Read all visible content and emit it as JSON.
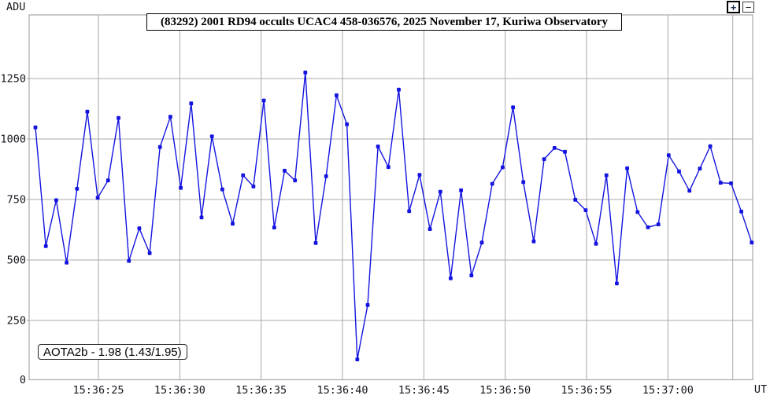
{
  "axes": {
    "y_unit": "ADU",
    "x_unit": "UT"
  },
  "toolbar": {
    "zoom_in_label": "+",
    "zoom_out_label": "−"
  },
  "title_box": {
    "text": "(83292) 2001 RD94 occults UCAC4 458-036576, 2025 November 17, Kuriwa Observatory"
  },
  "annotation_box": {
    "text": "AOTA2b - 1.98 (1.43/1.95)"
  },
  "chart_data": {
    "type": "line",
    "title": "(83292) 2001 RD94 occults UCAC4 458-036576, 2025 November 17, Kuriwa Observatory",
    "xlabel": "UT",
    "ylabel": "ADU",
    "annotation": "AOTA2b - 1.98 (1.43/1.95)",
    "line_color": "#1414e0",
    "marker": "square",
    "grid": "on",
    "grid_color": "#a8a8a8",
    "legend": "none",
    "ylim": [
      0,
      1510
    ],
    "yticks": [
      0,
      250,
      500,
      750,
      1000,
      1250
    ],
    "xticks": [
      {
        "label": "15:36:25",
        "seconds": 25
      },
      {
        "label": "15:36:30",
        "seconds": 30
      },
      {
        "label": "15:36:35",
        "seconds": 35
      },
      {
        "label": "15:36:40",
        "seconds": 40
      },
      {
        "label": "15:36:45",
        "seconds": 45
      },
      {
        "label": "15:36:50",
        "seconds": 50
      },
      {
        "label": "15:36:55",
        "seconds": 55
      },
      {
        "label": "15:37:00",
        "seconds": 60
      }
    ],
    "x_time_base": "15:36:00",
    "x_start_seconds": 21.13,
    "x_step_seconds": 0.638,
    "values": [
      1048,
      557,
      747,
      489,
      794,
      1113,
      757,
      829,
      1087,
      496,
      631,
      528,
      967,
      1092,
      798,
      1147,
      676,
      1011,
      792,
      650,
      850,
      804,
      1159,
      634,
      869,
      829,
      1275,
      570,
      846,
      1181,
      1061,
      89,
      314,
      969,
      884,
      1204,
      702,
      852,
      628,
      782,
      424,
      788,
      436,
      572,
      815,
      883,
      1131,
      822,
      577,
      917,
      963,
      947,
      749,
      706,
      567,
      850,
      403,
      879,
      698,
      635,
      647,
      933,
      866,
      786,
      878,
      970,
      819,
      817,
      700,
      572
    ]
  }
}
